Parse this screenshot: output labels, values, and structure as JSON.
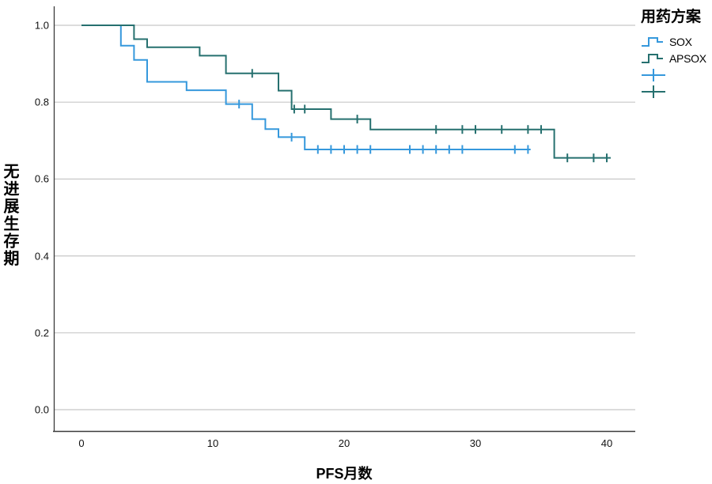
{
  "figure": {
    "y_axis_title": "无进展生存期",
    "x_axis_title": "PFS月数",
    "legend": {
      "title": "用药方案",
      "items": [
        {
          "label": "SOX",
          "type": "step-line",
          "color": "#3598DC"
        },
        {
          "label": "APSOX",
          "type": "step-line",
          "color": "#26706F"
        },
        {
          "label": "",
          "type": "censor-cross",
          "color": "#3598DC"
        },
        {
          "label": "",
          "type": "censor-cross",
          "color": "#26706F"
        }
      ]
    }
  },
  "chart_data": {
    "type": "line",
    "subtype": "kaplan-meier-step",
    "title": "",
    "xlabel": "PFS月数",
    "ylabel": "无进展生存期",
    "legend_title": "用药方案",
    "legend_position": "top-right",
    "grid": "horizontal-only",
    "grid_color": "#c8c8c8",
    "axis_color": "#3a3a3a",
    "xlim": [
      -2.1,
      42.2
    ],
    "ylim": [
      -0.055,
      1.05
    ],
    "xticks": [
      0,
      10,
      20,
      30,
      40
    ],
    "ytick_labels": [
      "0.0",
      "0.2",
      "0.4",
      "0.6",
      "0.8",
      "1.0"
    ],
    "ytick_values": [
      0.0,
      0.2,
      0.4,
      0.6,
      0.8,
      1.0
    ],
    "series": [
      {
        "name": "SOX",
        "color": "#3598DC",
        "steps": [
          [
            0,
            1.0
          ],
          [
            3,
            0.947
          ],
          [
            4,
            0.91
          ],
          [
            5,
            0.853
          ],
          [
            8,
            0.831
          ],
          [
            11,
            0.795
          ],
          [
            13,
            0.756
          ],
          [
            14,
            0.73
          ],
          [
            15,
            0.709
          ],
          [
            17,
            0.677
          ]
        ],
        "end_x": 34.2,
        "censors": [
          [
            12,
            0.795
          ],
          [
            16,
            0.709
          ],
          [
            18,
            0.677
          ],
          [
            19,
            0.677
          ],
          [
            20,
            0.677
          ],
          [
            21,
            0.677
          ],
          [
            22,
            0.677
          ],
          [
            25,
            0.677
          ],
          [
            26,
            0.677
          ],
          [
            27,
            0.677
          ],
          [
            28,
            0.677
          ],
          [
            29,
            0.677
          ],
          [
            33,
            0.677
          ],
          [
            34,
            0.677
          ]
        ]
      },
      {
        "name": "APSOX",
        "color": "#26706F",
        "steps": [
          [
            0,
            1.0
          ],
          [
            4,
            0.964
          ],
          [
            5,
            0.943
          ],
          [
            9,
            0.921
          ],
          [
            11,
            0.875
          ],
          [
            15,
            0.83
          ],
          [
            16,
            0.782
          ],
          [
            19,
            0.756
          ],
          [
            22,
            0.729
          ],
          [
            36,
            0.655
          ]
        ],
        "end_x": 40.3,
        "censors": [
          [
            13,
            0.875
          ],
          [
            16.2,
            0.782
          ],
          [
            17,
            0.782
          ],
          [
            21,
            0.756
          ],
          [
            27,
            0.729
          ],
          [
            29,
            0.729
          ],
          [
            30,
            0.729
          ],
          [
            32,
            0.729
          ],
          [
            34,
            0.729
          ],
          [
            35,
            0.729
          ],
          [
            37,
            0.655
          ],
          [
            39,
            0.655
          ],
          [
            40,
            0.655
          ]
        ]
      }
    ]
  }
}
